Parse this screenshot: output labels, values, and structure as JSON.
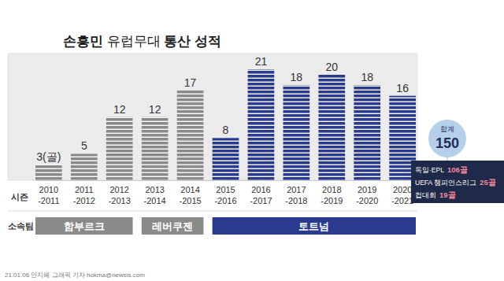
{
  "chart_data": {
    "type": "bar",
    "title": "손흥민 유럽무대 통산 성적",
    "categories": [
      "2010\n-2011",
      "2011\n-2012",
      "2012\n-2013",
      "2013\n-2014",
      "2014\n-2015",
      "2015\n-2016",
      "2016\n-2017",
      "2017\n-2018",
      "2018\n-2019",
      "2019\n-2020",
      "2020\n-2021"
    ],
    "values": [
      3,
      5,
      12,
      12,
      17,
      8,
      21,
      18,
      20,
      18,
      16
    ],
    "value_labels": [
      "3(골)",
      "5",
      "12",
      "12",
      "17",
      "8",
      "21",
      "18",
      "20",
      "18",
      "16"
    ],
    "colors": [
      "#8a8a8a",
      "#8a8a8a",
      "#8a8a8a",
      "#8a8a8a",
      "#8a8a8a",
      "#2a3b8f",
      "#2a3b8f",
      "#2a3b8f",
      "#2a3b8f",
      "#2a3b8f",
      "#2a3b8f"
    ],
    "ylim": [
      0,
      24
    ],
    "data_labels": true,
    "tick_labels": "x",
    "xlabel": "시즌",
    "team_label": "소속팀",
    "teams": [
      "함부르크",
      "함부르크",
      "함부르크",
      "레버쿠젠",
      "레버쿠젠",
      "토트넘",
      "토트넘",
      "토트넘",
      "토트넘",
      "토트넘",
      "토트넘"
    ],
    "total": {
      "label": "합계",
      "value": 150
    },
    "breakdown": [
      {
        "label": "독일·EPL",
        "text": "106골"
      },
      {
        "label": "UEFA 챔피언스리그",
        "text": "25골"
      },
      {
        "label": "컵대회",
        "text": "19골"
      }
    ],
    "source": "21.01.06 안지혜 그래픽 기자 hokma@newsis.com"
  }
}
